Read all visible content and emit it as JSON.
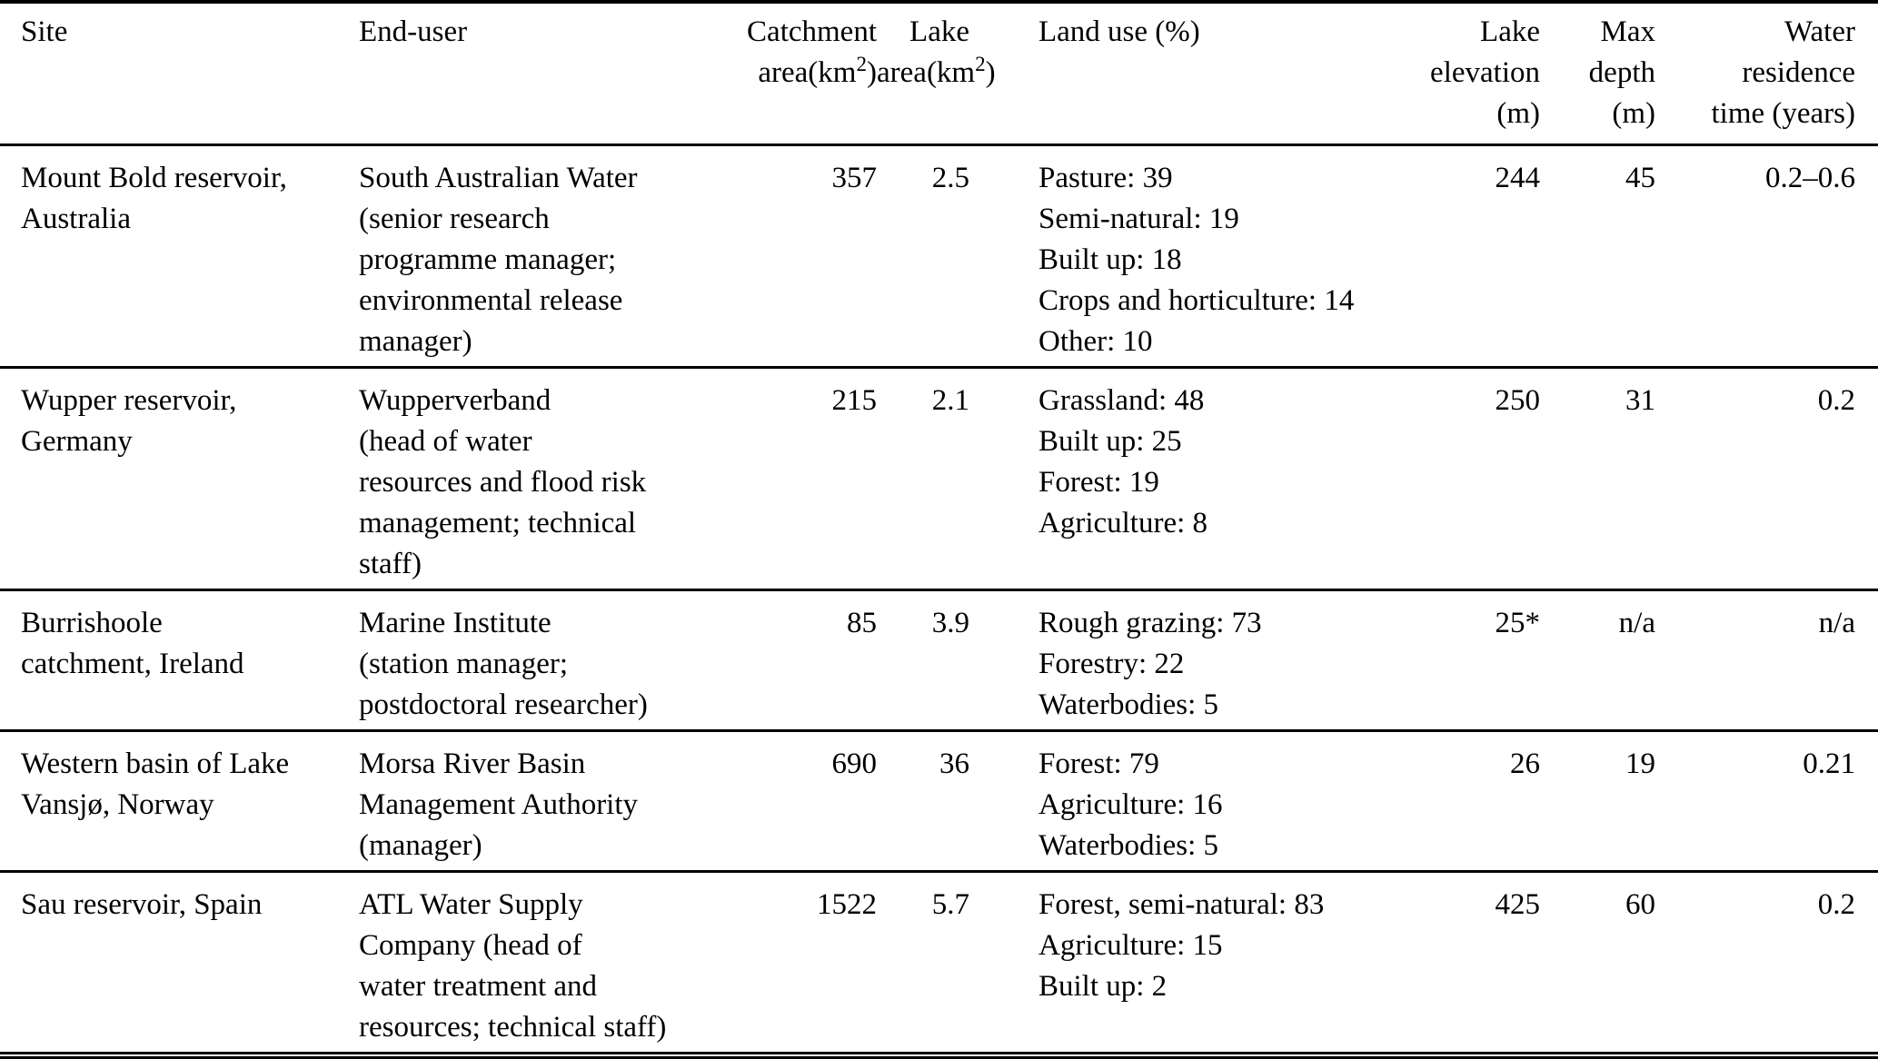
{
  "table": {
    "columns": [
      {
        "label_lines": [
          "Site"
        ]
      },
      {
        "label_lines": [
          "End-user"
        ]
      },
      {
        "label_lines": [
          "Catchment",
          "area"
        ],
        "unit_open": "(km",
        "unit_sup": "2",
        "unit_close": ")"
      },
      {
        "label_lines": [
          "Lake",
          "area"
        ],
        "unit_open": "(km",
        "unit_sup": "2",
        "unit_close": ")"
      },
      {
        "label_lines": [
          "Land use (%)"
        ]
      },
      {
        "label_lines": [
          "Lake",
          "elevation",
          "(m)"
        ]
      },
      {
        "label_lines": [
          "Max",
          "depth",
          "(m)"
        ]
      },
      {
        "label_lines": [
          "Water",
          "residence",
          "time (years)"
        ]
      }
    ],
    "rows": [
      {
        "site": [
          "Mount Bold reservoir,",
          "Australia"
        ],
        "end_user": [
          "South Australian Water",
          "(senior research",
          "programme manager;",
          "environmental release",
          "manager)"
        ],
        "catchment_area_km2": "357",
        "lake_area_km2": "2.5",
        "land_use": [
          "Pasture: 39",
          "Semi-natural: 19",
          "Built up: 18",
          "Crops and horticulture: 14",
          "Other: 10"
        ],
        "lake_elevation_m": "244",
        "max_depth_m": "45",
        "water_residence_time_years": "0.2–0.6"
      },
      {
        "site": [
          "Wupper reservoir,",
          "Germany"
        ],
        "end_user": [
          "Wupperverband",
          "(head of water",
          "resources and flood risk",
          "management; technical",
          "staff)"
        ],
        "catchment_area_km2": "215",
        "lake_area_km2": "2.1",
        "land_use": [
          "Grassland: 48",
          "Built up: 25",
          "Forest: 19",
          "Agriculture: 8"
        ],
        "lake_elevation_m": "250",
        "max_depth_m": "31",
        "water_residence_time_years": "0.2"
      },
      {
        "site": [
          "Burrishoole",
          "catchment, Ireland"
        ],
        "end_user": [
          "Marine Institute",
          "(station manager;",
          "postdoctoral researcher)"
        ],
        "catchment_area_km2": "85",
        "lake_area_km2": "3.9",
        "land_use": [
          "Rough grazing: 73",
          "Forestry: 22",
          "Waterbodies: 5"
        ],
        "lake_elevation_m": "25*",
        "max_depth_m": "n/a",
        "water_residence_time_years": "n/a"
      },
      {
        "site": [
          "Western basin of Lake",
          "Vansjø, Norway"
        ],
        "end_user": [
          "Morsa River Basin",
          "Management Authority",
          "(manager)"
        ],
        "catchment_area_km2": "690",
        "lake_area_km2": "36",
        "land_use": [
          "Forest: 79",
          "Agriculture: 16",
          "Waterbodies: 5"
        ],
        "lake_elevation_m": "26",
        "max_depth_m": "19",
        "water_residence_time_years": "0.21"
      },
      {
        "site": [
          "Sau reservoir, Spain"
        ],
        "end_user": [
          "ATL Water Supply",
          "Company (head of",
          "water treatment and",
          "resources; technical staff)"
        ],
        "catchment_area_km2": "1522",
        "lake_area_km2": "5.7",
        "land_use": [
          "Forest, semi-natural: 83",
          "Agriculture: 15",
          "Built up: 2"
        ],
        "lake_elevation_m": "425",
        "max_depth_m": "60",
        "water_residence_time_years": "0.2"
      }
    ]
  }
}
